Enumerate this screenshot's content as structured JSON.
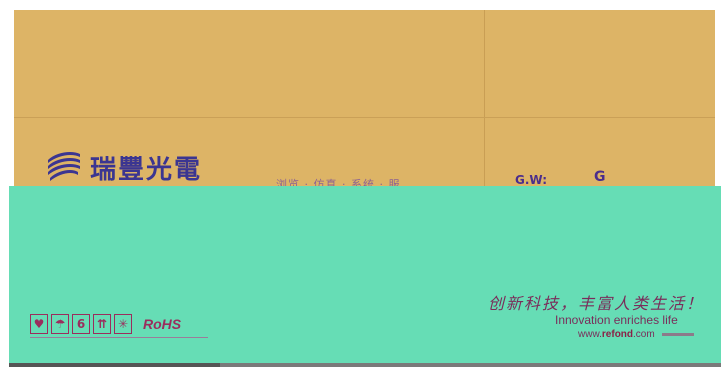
{
  "carton": {
    "colors": {
      "top": "#ddb466",
      "front": "#66ddb5",
      "print": "#9b2d5d",
      "logo": "#3b3591"
    }
  },
  "label": {
    "brand_cn": "瑞豐光電",
    "mid_print": "浏览 · 仿真 · 系统 · 服",
    "gross_weight_label": "G.W:",
    "gross_weight_unit": "G",
    "slogan_cn": "创新科技，丰富人类生活！",
    "slogan_en": "Innovation enriches life",
    "website_prefix": "www.",
    "website_domain": "refond",
    "website_suffix": ".com"
  },
  "handling_symbols": [
    {
      "name": "fragile-icon",
      "glyph": "♥"
    },
    {
      "name": "keep-dry-icon",
      "glyph": "☂"
    },
    {
      "name": "stack-limit-icon",
      "glyph": "6"
    },
    {
      "name": "this-way-up-icon",
      "glyph": "⇈"
    },
    {
      "name": "keep-from-sunlight-icon",
      "glyph": "✳"
    }
  ],
  "rohs_text": "RoHS"
}
